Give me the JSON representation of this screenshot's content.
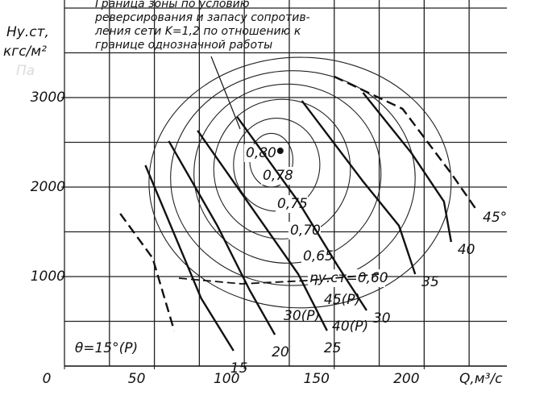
{
  "chart_data": {
    "type": "line",
    "y_label": [
      "Hу.ст,",
      "кгс/м²",
      "Па"
    ],
    "x_label": "Q,м³/с",
    "xlim": [
      0,
      246
    ],
    "ylim": [
      0,
      4090
    ],
    "xticks": [
      0,
      50,
      100,
      150,
      200
    ],
    "yticks": [
      1000,
      2000,
      3000
    ],
    "x_grid": [
      0,
      25,
      50,
      75,
      100,
      125,
      150,
      175,
      200,
      225
    ],
    "y_grid": [
      500,
      1000,
      1500,
      2000,
      2500,
      3000,
      3500,
      4000
    ],
    "annotation": [
      "Граница зоны по условию",
      "реверсирования и запасу сопротив-",
      "ления сети K=1,2 по отношению к",
      "границе однозначной работы"
    ],
    "series": [
      {
        "name": "15",
        "color": "#111",
        "dashed": false,
        "x": [
          45,
          61,
          76,
          94
        ],
        "values": [
          2243,
          1477,
          757,
          171
        ]
      },
      {
        "name": "20",
        "color": "#111",
        "dashed": false,
        "x": [
          58,
          85,
          103,
          117
        ],
        "values": [
          2514,
          1568,
          847,
          351
        ]
      },
      {
        "name": "25",
        "color": "#111",
        "dashed": false,
        "x": [
          74,
          108,
          130,
          146
        ],
        "values": [
          2631,
          1658,
          1027,
          396
        ]
      },
      {
        "name": "30",
        "color": "#111",
        "dashed": false,
        "x": [
          96,
          130,
          152,
          168
        ],
        "values": [
          2784,
          1838,
          1117,
          622
        ]
      },
      {
        "name": "35",
        "color": "#111",
        "dashed": false,
        "x": [
          132,
          166,
          186,
          195
        ],
        "values": [
          2964,
          2063,
          1568,
          1027
        ]
      },
      {
        "name": "40",
        "color": "#111",
        "dashed": false,
        "x": [
          166,
          193,
          211,
          215
        ],
        "values": [
          3054,
          2378,
          1838,
          1387
        ]
      },
      {
        "name": "45°",
        "color": "#111",
        "dashed": true,
        "x": [
          150,
          188,
          215,
          229
        ],
        "values": [
          3234,
          2874,
          2153,
          1748
        ]
      },
      {
        "name": "θ=15°(P)",
        "color": "#111",
        "dashed": true,
        "x": [
          31,
          49,
          61
        ],
        "values": [
          1703,
          1207,
          396
        ]
      }
    ],
    "reverse_labels": [
      "45(P)",
      "30(P)",
      "40(P)"
    ],
    "contours": [
      {
        "label": "0,80",
        "value": 0.8,
        "cx": 115,
        "cy": 2300,
        "rx": 12,
        "ry": 300
      },
      {
        "label": "0,78",
        "value": 0.78,
        "cx": 118,
        "cy": 2250,
        "rx": 24,
        "ry": 520
      },
      {
        "label": "0,75",
        "value": 0.75,
        "cx": 121,
        "cy": 2200,
        "rx": 38,
        "ry": 780
      },
      {
        "label": "0,70",
        "value": 0.7,
        "cx": 124,
        "cy": 2150,
        "rx": 52,
        "ry": 1000
      },
      {
        "label": "0,65",
        "value": 0.65,
        "cx": 127,
        "cy": 2100,
        "rx": 68,
        "ry": 1200
      },
      {
        "label": "ηу.ст=0,60",
        "value": 0.6,
        "cx": 131,
        "cy": 2050,
        "rx": 84,
        "ry": 1400
      }
    ],
    "optimum": [
      120,
      2405
    ]
  }
}
